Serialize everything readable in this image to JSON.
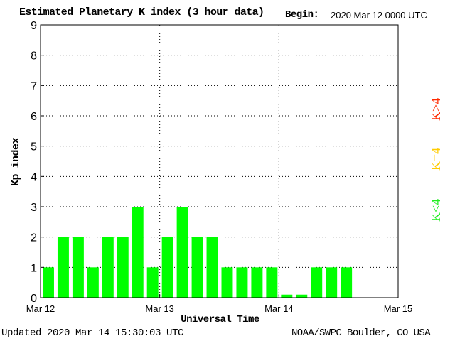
{
  "header": {
    "title": "Estimated Planetary K index (3 hour data)",
    "begin_label": "Begin:",
    "begin_value": "2020 Mar 12 0000 UTC"
  },
  "footer": {
    "updated": "Updated 2020 Mar 14 15:30:03 UTC",
    "credit": "NOAA/SWPC Boulder, CO USA"
  },
  "legend": {
    "high": {
      "text": "K>4",
      "color": "#ff2a00"
    },
    "equal": {
      "text": "K=4",
      "color": "#ffcc00"
    },
    "low": {
      "text": "K<4",
      "color": "#22ee22"
    }
  },
  "colors": {
    "bar": "#00ff00",
    "axis": "#000000"
  },
  "chart_data": {
    "type": "bar",
    "title": "Estimated Planetary K index (3 hour data)",
    "xlabel": "Universal Time",
    "ylabel": "Kp index",
    "ylim": [
      0,
      9
    ],
    "yticks": [
      0,
      1,
      2,
      3,
      4,
      5,
      6,
      7,
      8,
      9
    ],
    "xticks": [
      "Mar 12",
      "Mar 13",
      "Mar 14",
      "Mar 15"
    ],
    "slots_per_day": 8,
    "days": 3,
    "grid": "dotted",
    "values": [
      1,
      2,
      2,
      1,
      2,
      2,
      3,
      1,
      2,
      3,
      2,
      2,
      1,
      1,
      1,
      1,
      0.1,
      0.1,
      1,
      1,
      1
    ]
  }
}
